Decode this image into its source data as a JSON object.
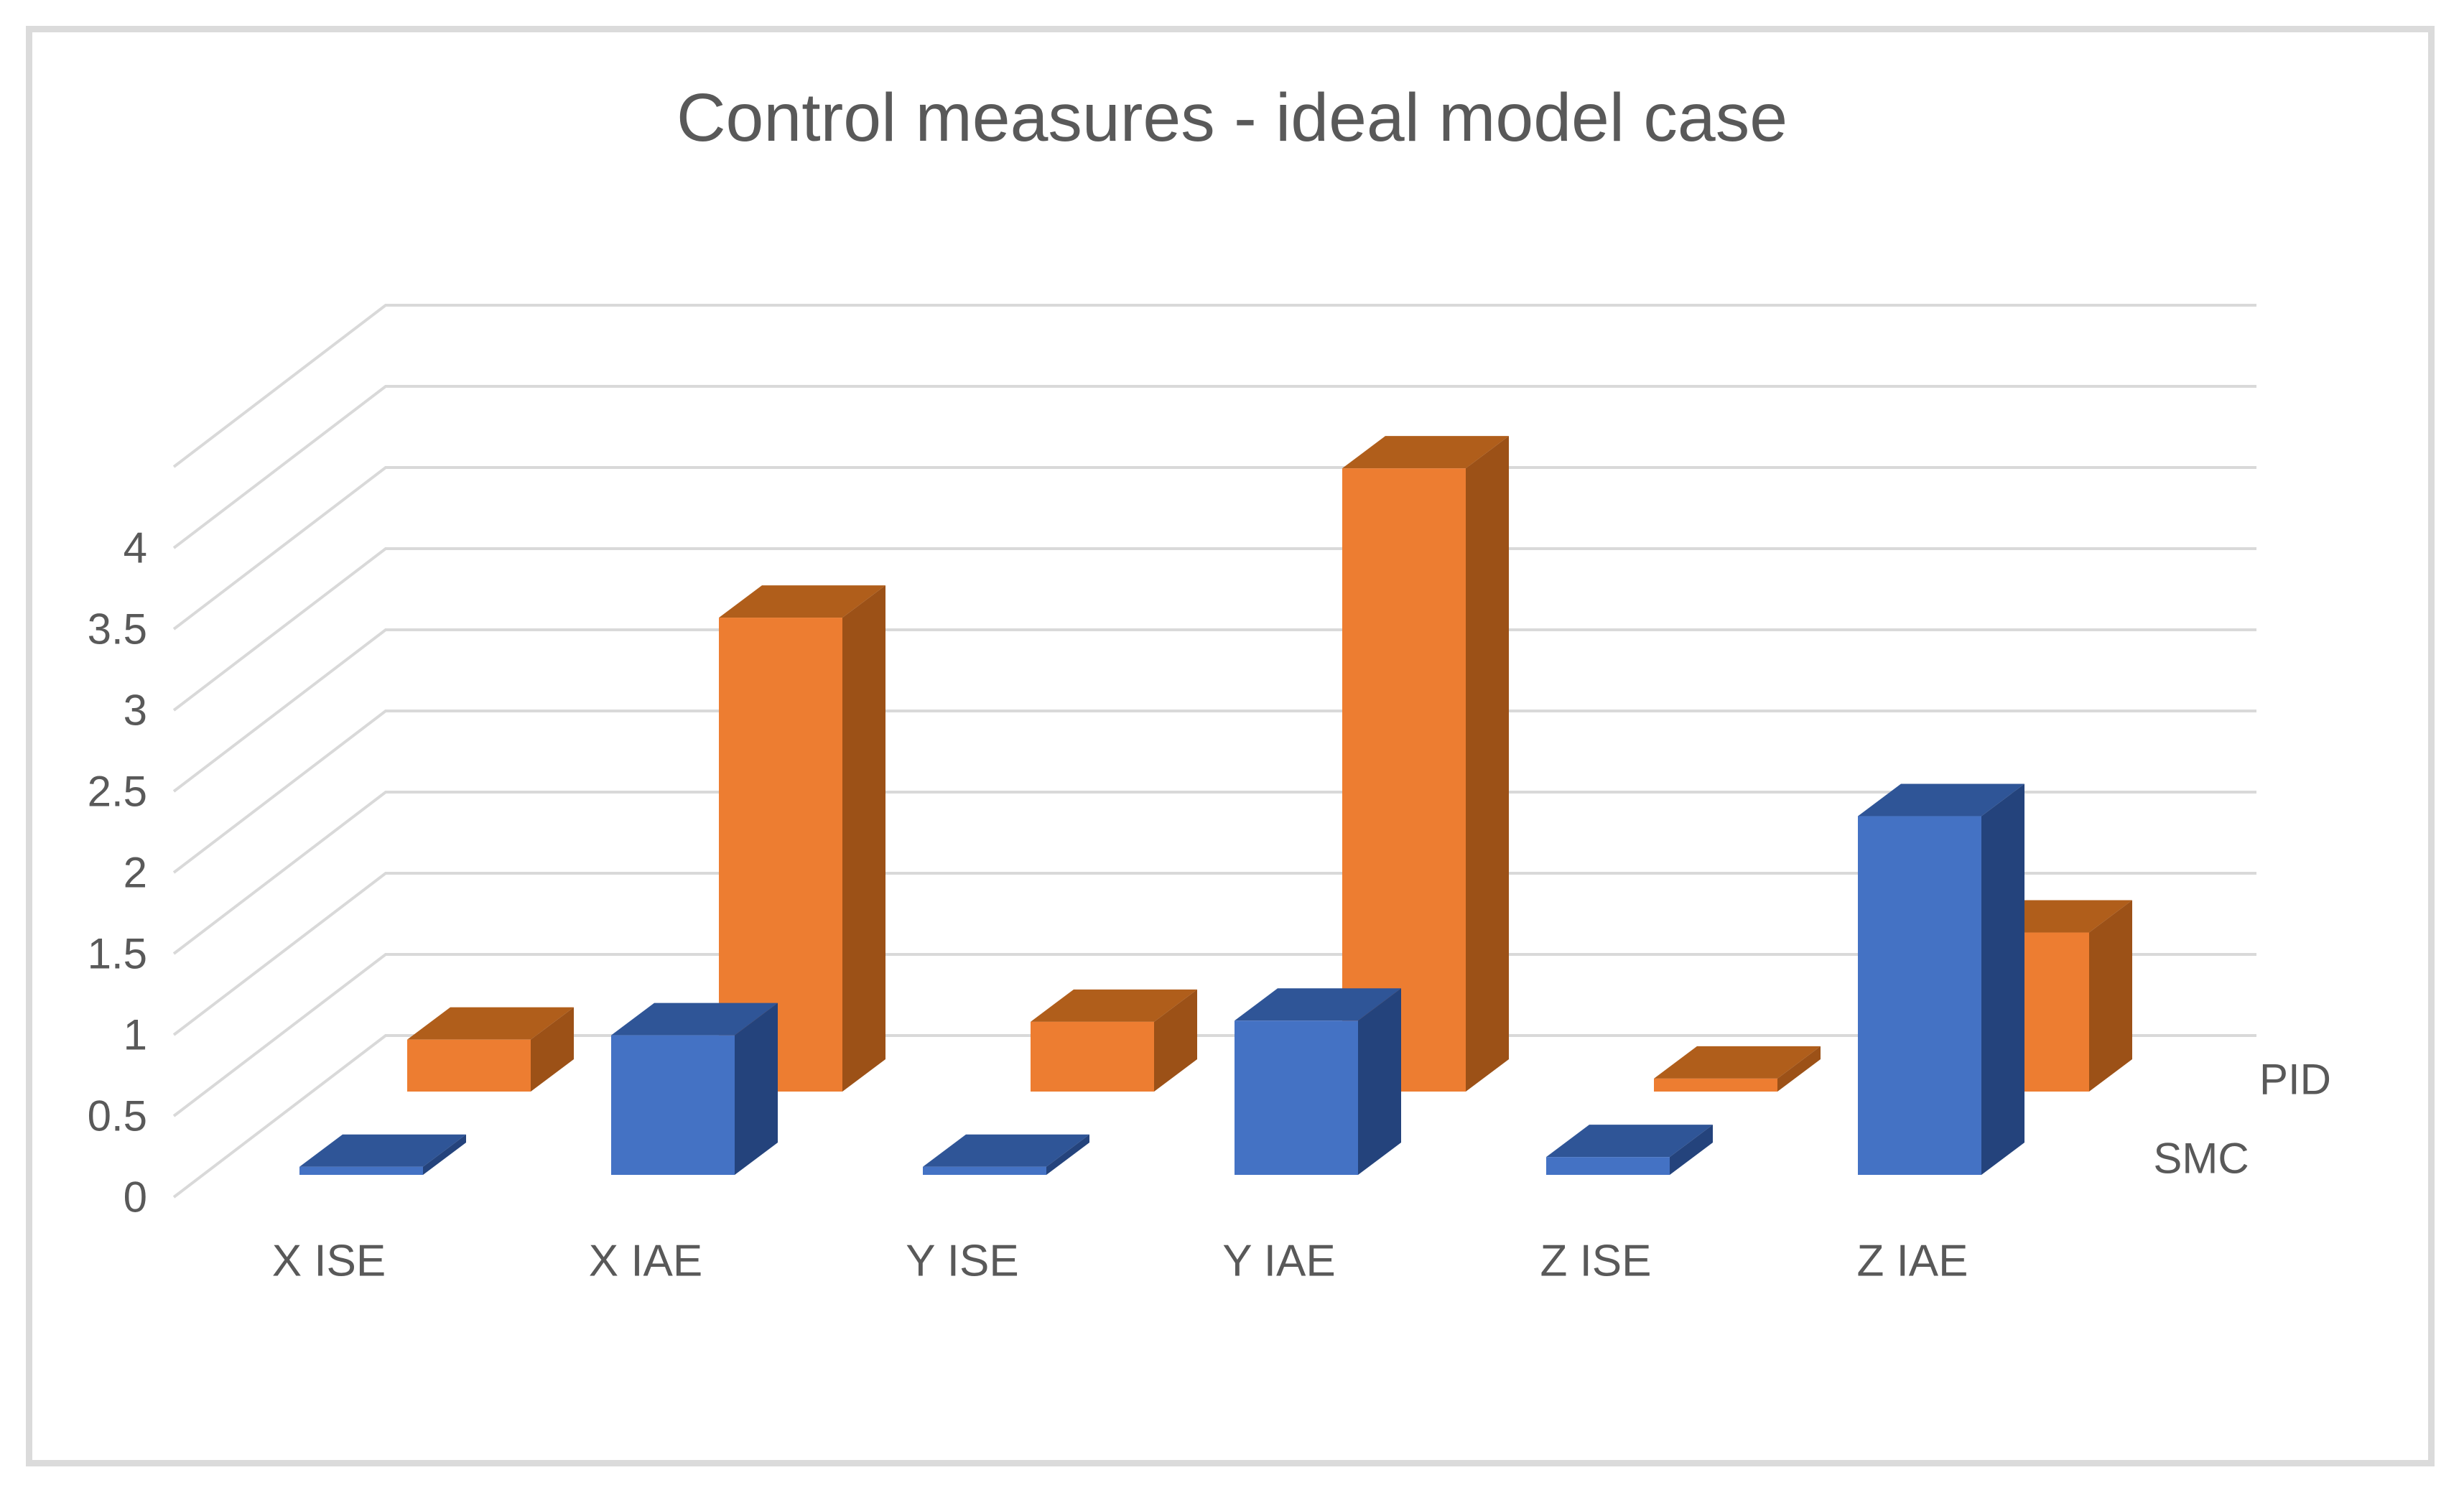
{
  "chart_data": {
    "type": "bar",
    "projection": "3d-column",
    "title": "Control measures - ideal model case",
    "categories": [
      "X ISE",
      "X IAE",
      "Y ISE",
      "Y IAE",
      "Z ISE",
      "Z IAE"
    ],
    "series": [
      {
        "name": "SMC",
        "row": "front",
        "values": [
          0.05,
          0.86,
          0.05,
          0.95,
          0.11,
          2.21
        ],
        "fill": "#4472C4",
        "top_shade": "#2F5597",
        "side_shade": "#24437C"
      },
      {
        "name": "PID",
        "row": "back",
        "values": [
          0.32,
          2.92,
          0.43,
          3.84,
          0.08,
          0.98
        ],
        "fill": "#ED7D31",
        "top_shade": "#B05E1B",
        "side_shade": "#9C5117"
      }
    ],
    "y_axis": {
      "ticks": [
        0,
        0.5,
        1,
        1.5,
        2,
        2.5,
        3,
        3.5,
        4
      ],
      "min": 0,
      "max": 4.5,
      "grid": true
    },
    "legend_position": "depth labels right of plot, PID above SMC",
    "colors": {
      "text": "#595959",
      "gridline": "#D9D9D9",
      "border": "#DBDBDB",
      "background": "#FFFFFF"
    }
  }
}
